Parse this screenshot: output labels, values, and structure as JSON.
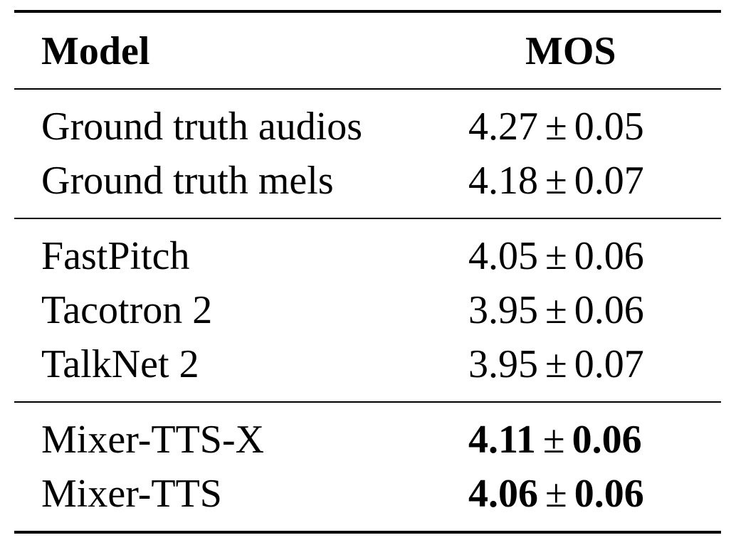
{
  "table": {
    "headers": {
      "model": "Model",
      "mos": "MOS"
    },
    "groups": [
      {
        "rows": [
          {
            "model": "Ground truth audios",
            "mean": "4.27",
            "pm": "±",
            "err": "0.05",
            "bold": false
          },
          {
            "model": "Ground truth mels",
            "mean": "4.18",
            "pm": "±",
            "err": "0.07",
            "bold": false
          }
        ]
      },
      {
        "rows": [
          {
            "model": "FastPitch",
            "mean": "4.05",
            "pm": "±",
            "err": "0.06",
            "bold": false
          },
          {
            "model": "Tacotron 2",
            "mean": "3.95",
            "pm": "±",
            "err": "0.06",
            "bold": false
          },
          {
            "model": "TalkNet 2",
            "mean": "3.95",
            "pm": "±",
            "err": "0.07",
            "bold": false
          }
        ]
      },
      {
        "rows": [
          {
            "model": "Mixer-TTS-X",
            "mean": "4.11",
            "pm": "±",
            "err": "0.06",
            "bold": true
          },
          {
            "model": "Mixer-TTS",
            "mean": "4.06",
            "pm": "±",
            "err": "0.06",
            "bold": true
          }
        ]
      }
    ]
  }
}
